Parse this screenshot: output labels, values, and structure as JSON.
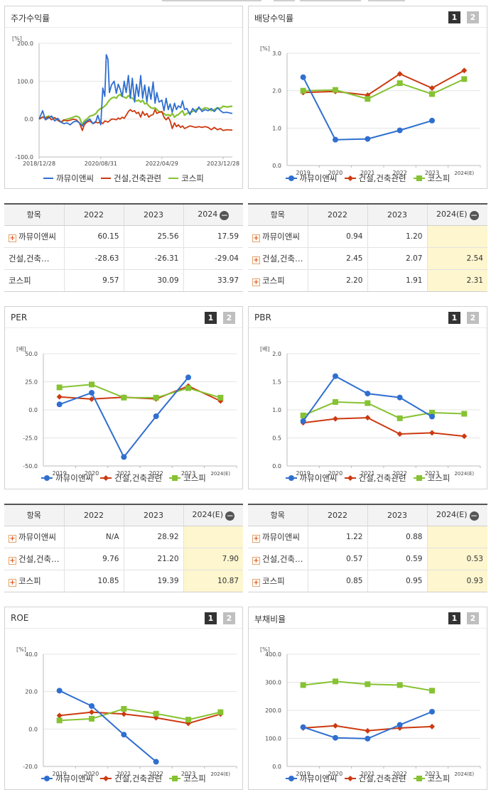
{
  "colors": {
    "company": "#2f6fd0",
    "industry": "#cc3a10",
    "kospi": "#86c232"
  },
  "legend": {
    "company": "까뮤이앤씨",
    "industry": "건설,건축관련",
    "kospi": "코스피"
  },
  "buttons": {
    "one": "1",
    "two": "2"
  },
  "icons": {
    "expand": "plus-icon",
    "collapse": "minus-icon"
  },
  "panels": {
    "stock_return": {
      "title": "주가수익률"
    },
    "dividend": {
      "title": "배당수익률"
    },
    "per": {
      "title": "PER"
    },
    "pbr": {
      "title": "PBR"
    },
    "roe": {
      "title": "ROE"
    },
    "debt": {
      "title": "부채비율"
    }
  },
  "tables": {
    "stock_return": {
      "headers": [
        "항목",
        "2022",
        "2023",
        "2024"
      ],
      "rows": [
        {
          "name": "까뮤이앤씨",
          "expand": true,
          "values": [
            "60.15",
            "25.56",
            "17.59"
          ]
        },
        {
          "name": "건설,건축…",
          "expand": false,
          "values": [
            "-28.63",
            "-26.31",
            "-29.04"
          ]
        },
        {
          "name": "코스피",
          "expand": false,
          "values": [
            "9.57",
            "30.09",
            "33.97"
          ]
        }
      ]
    },
    "dividend": {
      "headers": [
        "항목",
        "2022",
        "2023",
        "2024(E)"
      ],
      "rows": [
        {
          "name": "까뮤이앤씨",
          "expand": true,
          "values": [
            "0.94",
            "1.20",
            ""
          ]
        },
        {
          "name": "건설,건축…",
          "expand": true,
          "values": [
            "2.45",
            "2.07",
            "2.54"
          ]
        },
        {
          "name": "코스피",
          "expand": true,
          "values": [
            "2.20",
            "1.91",
            "2.31"
          ]
        }
      ]
    },
    "per": {
      "headers": [
        "항목",
        "2022",
        "2023",
        "2024(E)"
      ],
      "rows": [
        {
          "name": "까뮤이앤씨",
          "expand": true,
          "values": [
            "N/A",
            "28.92",
            ""
          ]
        },
        {
          "name": "건설,건축…",
          "expand": true,
          "values": [
            "9.76",
            "21.20",
            "7.90"
          ]
        },
        {
          "name": "코스피",
          "expand": true,
          "values": [
            "10.85",
            "19.39",
            "10.87"
          ]
        }
      ]
    },
    "pbr": {
      "headers": [
        "항목",
        "2022",
        "2023",
        "2024(E)"
      ],
      "rows": [
        {
          "name": "까뮤이앤씨",
          "expand": true,
          "values": [
            "1.22",
            "0.88",
            ""
          ]
        },
        {
          "name": "건설,건축…",
          "expand": true,
          "values": [
            "0.57",
            "0.59",
            "0.53"
          ]
        },
        {
          "name": "코스피",
          "expand": true,
          "values": [
            "0.85",
            "0.95",
            "0.93"
          ]
        }
      ]
    }
  },
  "chart_data": [
    {
      "id": "stock_return",
      "type": "line",
      "unit": "[%]",
      "ylim": [
        -100,
        200
      ],
      "yticks": [
        "200.0",
        "100.0",
        "0.0",
        "-100.0"
      ],
      "xticks": [
        "2018/12/28",
        "2020/08/31",
        "2022/04/29",
        "2023/12/28"
      ],
      "x_range": [
        "2018-12-28",
        "2024-03-28"
      ],
      "series": [
        {
          "name": "까뮤이앤씨",
          "key": "company",
          "x": [
            "2018-12-28",
            "2019-02-01",
            "2019-03-01",
            "2019-04-01",
            "2019-05-01",
            "2019-06-01",
            "2019-07-01",
            "2019-08-01",
            "2019-09-01",
            "2019-10-01",
            "2019-11-01",
            "2019-12-01",
            "2020-01-01",
            "2020-02-01",
            "2020-03-01",
            "2020-03-20",
            "2020-04-15",
            "2020-05-15",
            "2020-06-15",
            "2020-07-15",
            "2020-08-01",
            "2020-08-31",
            "2020-09-20",
            "2020-10-10",
            "2020-10-25",
            "2020-11-10",
            "2020-11-25",
            "2020-12-15",
            "2021-01-10",
            "2021-02-01",
            "2021-02-20",
            "2021-03-10",
            "2021-04-01",
            "2021-04-20",
            "2021-05-10",
            "2021-06-01",
            "2021-06-20",
            "2021-07-10",
            "2021-08-01",
            "2021-08-20",
            "2021-09-10",
            "2021-10-01",
            "2021-10-20",
            "2021-11-10",
            "2021-12-01",
            "2021-12-20",
            "2022-01-10",
            "2022-02-01",
            "2022-02-20",
            "2022-03-10",
            "2022-04-01",
            "2022-04-29",
            "2022-05-20",
            "2022-06-10",
            "2022-07-01",
            "2022-07-20",
            "2022-08-10",
            "2022-09-01",
            "2022-09-20",
            "2022-10-10",
            "2022-11-01",
            "2022-11-20",
            "2022-12-10",
            "2023-01-01",
            "2023-02-01",
            "2023-03-01",
            "2023-04-01",
            "2023-05-01",
            "2023-06-01",
            "2023-07-01",
            "2023-08-01",
            "2023-09-01",
            "2023-10-01",
            "2023-11-01",
            "2023-12-01",
            "2023-12-28",
            "2024-02-01",
            "2024-03-28"
          ],
          "y": [
            0,
            22,
            -2,
            3,
            8,
            -5,
            2,
            -8,
            -12,
            -10,
            -15,
            -8,
            -5,
            -10,
            -18,
            -10,
            -5,
            0,
            -12,
            -5,
            10,
            -15,
            82,
            60,
            170,
            158,
            70,
            90,
            100,
            68,
            92,
            80,
            60,
            100,
            70,
            115,
            55,
            108,
            45,
            92,
            60,
            115,
            55,
            90,
            45,
            85,
            52,
            98,
            42,
            70,
            45,
            50,
            22,
            55,
            25,
            40,
            18,
            42,
            25,
            35,
            30,
            48,
            25,
            28,
            12,
            28,
            18,
            32,
            20,
            25,
            22,
            28,
            20,
            30,
            22,
            17,
            18,
            15
          ]
        },
        {
          "name": "건설,건축관련",
          "key": "industry",
          "x": [
            "2018-12-28",
            "2019-02-01",
            "2019-03-01",
            "2019-04-01",
            "2019-05-01",
            "2019-06-01",
            "2019-07-01",
            "2019-08-01",
            "2019-09-01",
            "2019-10-01",
            "2019-11-01",
            "2019-12-01",
            "2020-01-01",
            "2020-02-01",
            "2020-03-01",
            "2020-03-20",
            "2020-04-15",
            "2020-05-15",
            "2020-06-15",
            "2020-07-15",
            "2020-08-01",
            "2020-08-31",
            "2020-09-20",
            "2020-10-10",
            "2020-10-25",
            "2020-11-10",
            "2020-11-25",
            "2020-12-15",
            "2021-01-10",
            "2021-02-01",
            "2021-02-20",
            "2021-03-10",
            "2021-04-01",
            "2021-04-20",
            "2021-05-10",
            "2021-06-01",
            "2021-06-20",
            "2021-07-10",
            "2021-08-01",
            "2021-08-20",
            "2021-09-10",
            "2021-10-01",
            "2021-10-20",
            "2021-11-10",
            "2021-12-01",
            "2021-12-20",
            "2022-01-10",
            "2022-02-01",
            "2022-02-20",
            "2022-03-10",
            "2022-04-01",
            "2022-04-29",
            "2022-05-20",
            "2022-06-10",
            "2022-07-01",
            "2022-07-20",
            "2022-08-10",
            "2022-09-01",
            "2022-09-20",
            "2022-10-10",
            "2022-11-01",
            "2022-11-20",
            "2022-12-10",
            "2023-01-01",
            "2023-02-01",
            "2023-03-01",
            "2023-04-01",
            "2023-05-01",
            "2023-06-01",
            "2023-07-01",
            "2023-08-01",
            "2023-09-01",
            "2023-10-01",
            "2023-11-01",
            "2023-12-01",
            "2023-12-28",
            "2024-02-01",
            "2024-03-28"
          ],
          "y": [
            0,
            5,
            2,
            6,
            -2,
            4,
            -3,
            -8,
            -2,
            -5,
            -3,
            0,
            -2,
            -10,
            -30,
            -15,
            -8,
            -5,
            -12,
            -8,
            -10,
            -8,
            -12,
            -5,
            -6,
            -8,
            -5,
            0,
            0,
            -2,
            3,
            0,
            5,
            2,
            10,
            20,
            25,
            20,
            22,
            15,
            18,
            5,
            20,
            10,
            15,
            5,
            10,
            12,
            25,
            15,
            18,
            20,
            5,
            -2,
            5,
            -5,
            -25,
            -10,
            -20,
            -15,
            -22,
            -18,
            -25,
            -22,
            -18,
            -20,
            -22,
            -20,
            -22,
            -20,
            -22,
            -28,
            -22,
            -28,
            -25,
            -30,
            -28,
            -29
          ]
        },
        {
          "name": "코스피",
          "key": "kospi",
          "x": [
            "2018-12-28",
            "2019-02-01",
            "2019-03-01",
            "2019-04-01",
            "2019-05-01",
            "2019-06-01",
            "2019-07-01",
            "2019-08-01",
            "2019-09-01",
            "2019-10-01",
            "2019-11-01",
            "2019-12-01",
            "2020-01-01",
            "2020-02-01",
            "2020-03-01",
            "2020-03-20",
            "2020-04-15",
            "2020-05-15",
            "2020-06-15",
            "2020-07-15",
            "2020-08-01",
            "2020-08-31",
            "2020-09-20",
            "2020-10-10",
            "2020-10-25",
            "2020-11-10",
            "2020-11-25",
            "2020-12-15",
            "2021-01-10",
            "2021-02-01",
            "2021-02-20",
            "2021-03-10",
            "2021-04-01",
            "2021-04-20",
            "2021-05-10",
            "2021-06-01",
            "2021-06-20",
            "2021-07-10",
            "2021-08-01",
            "2021-08-20",
            "2021-09-10",
            "2021-10-01",
            "2021-10-20",
            "2021-11-10",
            "2021-12-01",
            "2021-12-20",
            "2022-01-10",
            "2022-02-01",
            "2022-02-20",
            "2022-03-10",
            "2022-04-01",
            "2022-04-29",
            "2022-05-20",
            "2022-06-10",
            "2022-07-01",
            "2022-07-20",
            "2022-08-10",
            "2022-09-01",
            "2022-09-20",
            "2022-10-10",
            "2022-11-01",
            "2022-11-20",
            "2022-12-10",
            "2023-01-01",
            "2023-02-01",
            "2023-03-01",
            "2023-04-01",
            "2023-05-01",
            "2023-06-01",
            "2023-07-01",
            "2023-08-01",
            "2023-09-01",
            "2023-10-01",
            "2023-11-01",
            "2023-12-01",
            "2023-12-28",
            "2024-02-01",
            "2024-03-28"
          ],
          "y": [
            0,
            6,
            4,
            8,
            5,
            3,
            -2,
            -8,
            -4,
            0,
            2,
            5,
            8,
            4,
            -15,
            -5,
            0,
            8,
            10,
            15,
            22,
            28,
            30,
            35,
            38,
            45,
            50,
            55,
            58,
            55,
            62,
            65,
            60,
            58,
            55,
            62,
            58,
            55,
            50,
            48,
            50,
            45,
            50,
            40,
            42,
            35,
            30,
            28,
            30,
            25,
            20,
            18,
            15,
            10,
            12,
            8,
            15,
            5,
            10,
            12,
            18,
            22,
            10,
            15,
            18,
            20,
            25,
            28,
            25,
            30,
            28,
            22,
            25,
            30,
            28,
            34,
            32,
            34
          ]
        }
      ]
    },
    {
      "id": "dividend",
      "type": "line",
      "unit": "[%]",
      "ylim": [
        0,
        3
      ],
      "yticks": [
        "3.0",
        "2.0",
        "1.0",
        "0.0"
      ],
      "categories": [
        "2019",
        "2020",
        "2021",
        "2022",
        "2023",
        "2024(E)"
      ],
      "series": [
        {
          "name": "까뮤이앤씨",
          "key": "company",
          "values": [
            2.36,
            0.69,
            0.71,
            0.94,
            1.2,
            null
          ]
        },
        {
          "name": "건설,건축관련",
          "key": "industry",
          "values": [
            1.95,
            1.98,
            1.88,
            2.45,
            2.07,
            2.54
          ]
        },
        {
          "name": "코스피",
          "key": "kospi",
          "values": [
            2.0,
            2.02,
            1.78,
            2.2,
            1.91,
            2.31
          ]
        }
      ]
    },
    {
      "id": "per",
      "type": "line",
      "unit": "[배]",
      "ylim": [
        -50,
        50
      ],
      "yticks": [
        "50.0",
        "25.0",
        "0.0",
        "-25.0",
        "-50.0"
      ],
      "categories": [
        "2019",
        "2020",
        "2021",
        "2022",
        "2023",
        "2024(E)"
      ],
      "series": [
        {
          "name": "까뮤이앤씨",
          "key": "company",
          "values": [
            4.9,
            15.2,
            -42.0,
            -5.7,
            28.92,
            null
          ]
        },
        {
          "name": "건설,건축관련",
          "key": "industry",
          "values": [
            11.6,
            9.6,
            11.2,
            9.76,
            21.2,
            7.9
          ]
        },
        {
          "name": "코스피",
          "key": "kospi",
          "values": [
            20.0,
            22.6,
            10.9,
            10.85,
            19.39,
            10.87
          ]
        }
      ]
    },
    {
      "id": "pbr",
      "type": "line",
      "unit": "[배]",
      "ylim": [
        0,
        2
      ],
      "yticks": [
        "2.0",
        "1.5",
        "1.0",
        "0.5",
        "0.0"
      ],
      "categories": [
        "2019",
        "2020",
        "2021",
        "2022",
        "2023",
        "2024(E)"
      ],
      "series": [
        {
          "name": "까뮤이앤씨",
          "key": "company",
          "values": [
            0.8,
            1.6,
            1.29,
            1.22,
            0.88,
            null
          ]
        },
        {
          "name": "건설,건축관련",
          "key": "industry",
          "values": [
            0.77,
            0.84,
            0.86,
            0.57,
            0.59,
            0.53
          ]
        },
        {
          "name": "코스피",
          "key": "kospi",
          "values": [
            0.9,
            1.14,
            1.12,
            0.85,
            0.95,
            0.93
          ]
        }
      ]
    },
    {
      "id": "roe",
      "type": "line",
      "unit": "[%]",
      "ylim": [
        -20,
        40
      ],
      "yticks": [
        "40.0",
        "20.0",
        "0.0",
        "-20.0"
      ],
      "categories": [
        "2019",
        "2020",
        "2021",
        "2022",
        "2023",
        "2024(E)"
      ],
      "series": [
        {
          "name": "까뮤이앤씨",
          "key": "company",
          "values": [
            20.5,
            12.3,
            -3.0,
            -17.5,
            null,
            null
          ]
        },
        {
          "name": "건설,건축관련",
          "key": "industry",
          "values": [
            7.2,
            9.0,
            8.0,
            6.0,
            3.0,
            8.0
          ]
        },
        {
          "name": "코스피",
          "key": "kospi",
          "values": [
            4.6,
            5.5,
            10.8,
            8.2,
            5.0,
            9.0
          ]
        }
      ]
    },
    {
      "id": "debt",
      "type": "line",
      "unit": "[%]",
      "ylim": [
        0,
        400
      ],
      "yticks": [
        "400.0",
        "300.0",
        "200.0",
        "100.0",
        "0.0"
      ],
      "categories": [
        "2019",
        "2020",
        "2021",
        "2022",
        "2023",
        "2024(E)"
      ],
      "series": [
        {
          "name": "까뮤이앤씨",
          "key": "company",
          "values": [
            140,
            102,
            99,
            148,
            195,
            null
          ]
        },
        {
          "name": "건설,건축관련",
          "key": "industry",
          "values": [
            137,
            145,
            127,
            137,
            142,
            null
          ]
        },
        {
          "name": "코스피",
          "key": "kospi",
          "values": [
            290,
            303,
            293,
            290,
            270,
            null
          ]
        }
      ]
    }
  ]
}
